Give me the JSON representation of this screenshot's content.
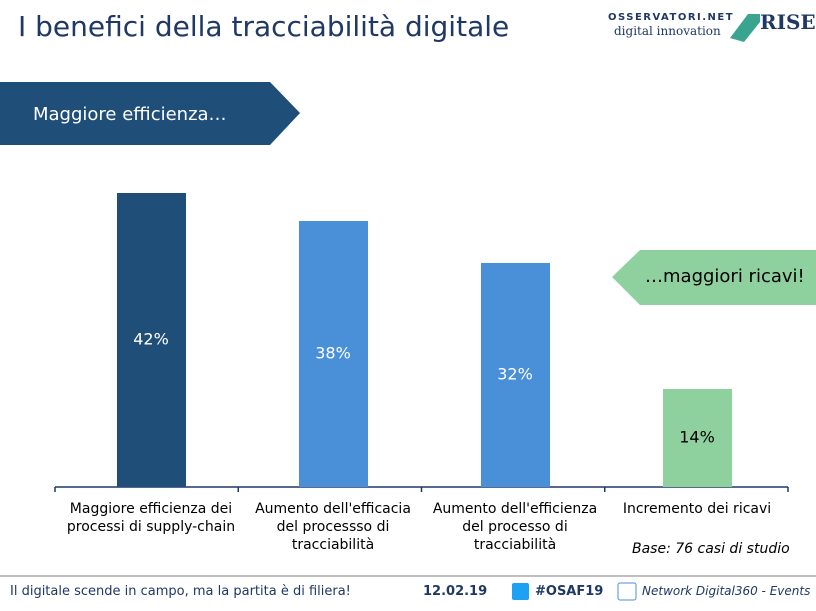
{
  "chart_data": {
    "type": "bar",
    "title": "I benefici della tracciabilità digitale",
    "categories": [
      "Maggiore efficienza dei processi di supply-chain",
      "Aumento dell'efficacia del processso di tracciabilità",
      "Aumento dell'efficienza del processo di tracciabilità",
      "Incremento dei ricavi"
    ],
    "values": [
      42,
      38,
      32,
      14
    ],
    "value_labels": [
      "42%",
      "38%",
      "32%",
      "14%"
    ],
    "colors": [
      "#1f4e79",
      "#4a90d9",
      "#4a90d9",
      "#8fd19e"
    ],
    "ylim": [
      0,
      45
    ]
  },
  "banner": "Maggiore efficienza…",
  "callout": "…maggiori ricavi!",
  "note": "Base: 76 casi di studio",
  "logos": {
    "osservatori": "OSSERVATORI.NET",
    "osservatori_sub": "digital innovation",
    "rise": "RISE"
  },
  "footer": {
    "tagline": "Il digitale scende in campo, ma la partita è di filiera!",
    "date": "12.02.19",
    "hashtag": "#OSAF19",
    "network": "Network Digital360 - Events"
  }
}
